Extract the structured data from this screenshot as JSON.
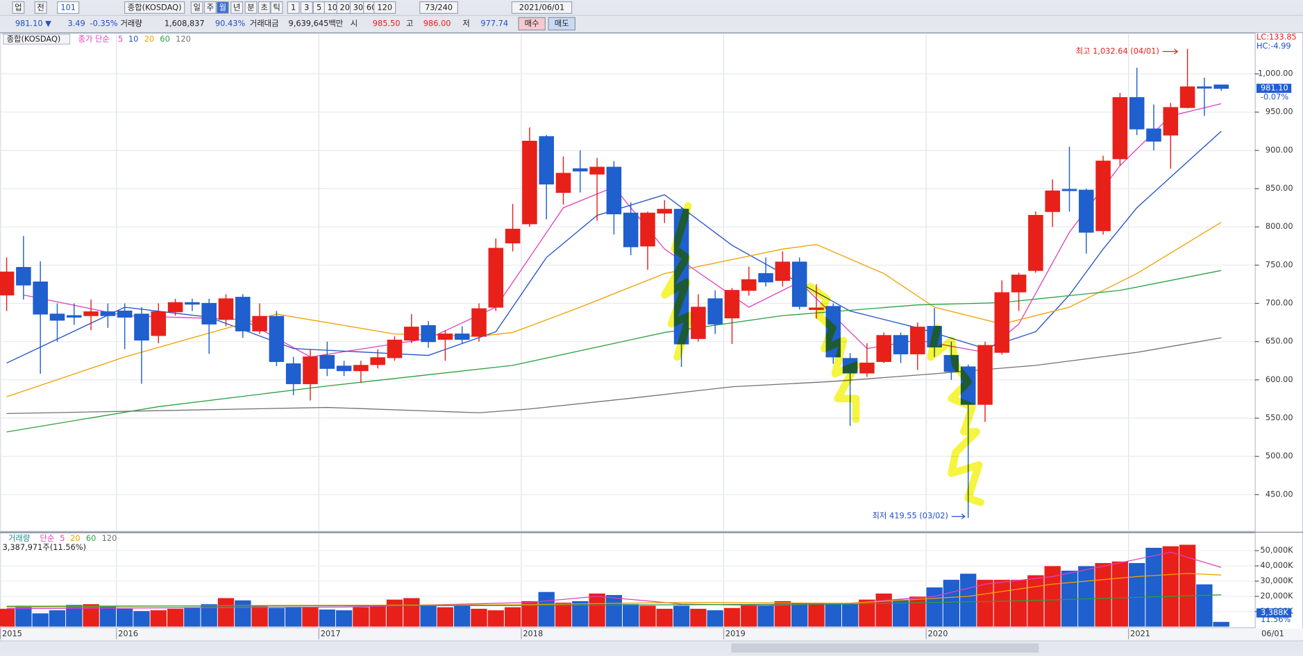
{
  "toolbar": {
    "row1": [
      "업",
      "전",
      "101",
      "종합(KOSDAQ)",
      "일",
      "주",
      "월",
      "년",
      "분",
      "초",
      "틱",
      "1",
      "3",
      "5",
      "10",
      "20",
      "30",
      "60",
      "120",
      "73/240",
      "2021/06/01"
    ],
    "row2": [
      "981.10 ▼",
      "3.49",
      "-0.35%",
      "거래량",
      "1,608,837",
      "90.43%",
      "거래대금",
      "9,639,645백만",
      "시",
      "985.50",
      "고",
      "986.00",
      "저",
      "977.74",
      "매수",
      "매도"
    ]
  },
  "chart_data": [
    {
      "type": "candlestick",
      "title": "종합(KOSDAQ)",
      "legend_title": "종가 단순",
      "up_color": "#e8201a",
      "down_color": "#1f5fce",
      "categories": [
        "2015",
        null,
        null,
        null,
        null,
        null,
        null,
        "2016",
        null,
        null,
        null,
        null,
        null,
        null,
        null,
        null,
        null,
        null,
        null,
        "2017",
        null,
        null,
        null,
        null,
        null,
        null,
        null,
        null,
        null,
        null,
        null,
        "2018",
        null,
        null,
        null,
        null,
        null,
        null,
        null,
        null,
        null,
        null,
        null,
        "2019",
        null,
        null,
        null,
        null,
        null,
        null,
        null,
        null,
        null,
        null,
        null,
        "2020",
        null,
        null,
        null,
        null,
        null,
        null,
        null,
        null,
        null,
        null,
        null,
        "2021",
        null,
        null,
        null,
        null,
        null
      ],
      "x_end_label": "06/01",
      "open": [
        711,
        747,
        728,
        686,
        684,
        684,
        689,
        690,
        686,
        658,
        689,
        701,
        700,
        679,
        708,
        664,
        683,
        621,
        595,
        632,
        618,
        612,
        620,
        629,
        652,
        671,
        653,
        660,
        657,
        695,
        779,
        804,
        918,
        845,
        876,
        869,
        878,
        818,
        775,
        818,
        823,
        654,
        706,
        681,
        717,
        739,
        730,
        754,
        692,
        696,
        628,
        609,
        624,
        658,
        634,
        670,
        632,
        617,
        568,
        636,
        715,
        743,
        820,
        849,
        848,
        795,
        889,
        969,
        928,
        920,
        956,
        983,
        985.5
      ],
      "high": [
        760,
        788,
        755,
        700,
        700,
        705,
        700,
        700,
        695,
        700,
        706,
        706,
        706,
        712,
        712,
        700,
        690,
        630,
        640,
        650,
        625,
        625,
        640,
        657,
        686,
        677,
        665,
        670,
        700,
        785,
        830,
        930,
        920,
        892,
        900,
        890,
        886,
        832,
        820,
        835,
        825,
        712,
        717,
        720,
        748,
        760,
        768,
        760,
        725,
        700,
        635,
        648,
        662,
        662,
        675,
        694,
        650,
        620,
        650,
        730,
        740,
        820,
        862,
        905,
        850,
        893,
        975,
        1008,
        960,
        962,
        1032.64,
        995,
        986
      ],
      "low": [
        690,
        705,
        608,
        650,
        672,
        665,
        668,
        640,
        595,
        648,
        684,
        690,
        634,
        670,
        655,
        660,
        618,
        580,
        573,
        605,
        605,
        596,
        615,
        625,
        648,
        642,
        625,
        648,
        650,
        690,
        768,
        800,
        810,
        829,
        845,
        808,
        790,
        763,
        744,
        805,
        617,
        650,
        660,
        647,
        710,
        722,
        722,
        692,
        680,
        621,
        540,
        604,
        622,
        622,
        613,
        630,
        600,
        419.55,
        545,
        633,
        690,
        740,
        800,
        820,
        765,
        790,
        880,
        920,
        900,
        876,
        955,
        945,
        977.74
      ],
      "close": [
        741,
        724,
        686,
        678,
        682,
        689,
        684,
        682,
        652,
        689,
        701,
        699,
        673,
        706,
        664,
        683,
        624,
        595,
        630,
        615,
        612,
        619,
        629,
        652,
        669,
        650,
        660,
        653,
        693,
        772,
        797,
        912,
        856,
        870,
        873,
        878,
        817,
        774,
        818,
        823,
        647,
        695,
        673,
        717,
        731,
        728,
        754,
        696,
        694,
        630,
        609,
        622,
        658,
        634,
        669,
        643,
        611,
        568,
        645,
        714,
        737,
        815,
        847,
        848,
        793,
        886,
        969,
        928,
        912,
        956,
        983,
        982,
        981.1
      ],
      "ylim": [
        402,
        1053
      ],
      "yticks": [
        {
          "value": 450,
          "label": "450.00"
        },
        {
          "value": 500,
          "label": "500.00"
        },
        {
          "value": 550,
          "label": "550.00"
        },
        {
          "value": 600,
          "label": "600.00"
        },
        {
          "value": 650,
          "label": "650.00"
        },
        {
          "value": 700,
          "label": "700.00"
        },
        {
          "value": 750,
          "label": "750.00"
        },
        {
          "value": 800,
          "label": "800.00"
        },
        {
          "value": 850,
          "label": "850.00"
        },
        {
          "value": 900,
          "label": "900.00"
        },
        {
          "value": 950,
          "label": "950.00"
        },
        {
          "value": 1000,
          "label": "1,000.00"
        }
      ],
      "grid": true,
      "ma": [
        {
          "name": "5",
          "color": "#e040c0",
          "x": [
            1,
            7,
            14,
            18,
            25,
            29,
            33,
            36,
            39,
            44,
            47,
            51,
            54,
            58,
            60,
            63,
            66,
            69,
            72
          ],
          "values": [
            711,
            684,
            679,
            630,
            654,
            695,
            825,
            852,
            771,
            695,
            728,
            641,
            652,
            636,
            673,
            793,
            880,
            945,
            961
          ]
        },
        {
          "name": "10",
          "color": "#1f4fc8",
          "x": [
            0,
            7,
            12,
            17,
            25,
            29,
            32,
            35,
            39,
            43,
            46,
            50,
            54,
            58,
            61,
            63,
            65,
            67,
            72
          ],
          "values": [
            622,
            695,
            682,
            641,
            632,
            663,
            760,
            815,
            842,
            776,
            739,
            690,
            668,
            641,
            663,
            711,
            771,
            825,
            925
          ]
        },
        {
          "name": "20",
          "color": "#f0a000",
          "x": [
            0,
            7,
            16,
            23,
            28,
            30,
            34,
            39,
            46,
            48,
            52,
            55,
            59,
            63,
            67,
            72
          ],
          "values": [
            578,
            630,
            686,
            660,
            657,
            662,
            695,
            739,
            771,
            777,
            739,
            695,
            673,
            695,
            739,
            806
          ]
        },
        {
          "name": "60",
          "color": "#2aa040",
          "x": [
            0,
            9,
            19,
            30,
            39,
            46,
            54,
            59,
            66,
            72
          ],
          "values": [
            532,
            565,
            592,
            619,
            662,
            684,
            698,
            701,
            717,
            743
          ]
        },
        {
          "name": "120",
          "color": "#707070",
          "x": [
            0,
            19,
            28,
            31,
            37,
            43,
            49,
            55,
            61,
            67,
            72
          ],
          "values": [
            556,
            564,
            557,
            562,
            576,
            591,
            598,
            608,
            619,
            636,
            655
          ]
        }
      ],
      "max_label": "최고 1,032.64 (04/01)",
      "min_label": "최저 419.55 (03/02)",
      "lc_label": "LC:133.85",
      "hc_label": "HC:-4.99",
      "last_label": "981.10",
      "last_change": "-0.07%"
    },
    {
      "type": "bar",
      "title": "거래량",
      "legend_title": "단순",
      "summary": "3,387,971주(11.56%)",
      "values": [
        12000,
        14000,
        9000,
        11000,
        14500,
        15000,
        13500,
        12000,
        10500,
        11000,
        12000,
        13000,
        15000,
        19000,
        17500,
        13500,
        12500,
        13000,
        13000,
        11500,
        11000,
        13000,
        14000,
        18000,
        19000,
        14000,
        13000,
        14000,
        12000,
        11000,
        13000,
        17000,
        23000,
        16000,
        17000,
        22000,
        21000,
        15000,
        14000,
        12000,
        14000,
        12000,
        11000,
        12500,
        15000,
        14000,
        17000,
        16000,
        16000,
        15000,
        15000,
        18000,
        22000,
        18000,
        20000,
        26000,
        31000,
        35000,
        31000,
        31000,
        31000,
        34000,
        40000,
        37000,
        40000,
        42000,
        43000,
        42000,
        52000,
        53000,
        54000,
        28000,
        3388
      ],
      "value_labels_last": "3,388K",
      "last_pct": "11.56%",
      "ylim": [
        0,
        61000
      ],
      "yticks": [
        {
          "value": 10000,
          "label": "10,000K"
        },
        {
          "value": 20000,
          "label": "20,000K"
        },
        {
          "value": 30000,
          "label": "30,000K"
        },
        {
          "value": 40000,
          "label": "40,000K"
        },
        {
          "value": 50000,
          "label": "50,000K"
        }
      ],
      "ma": [
        {
          "name": "5",
          "color": "#e040c0",
          "x": [
            0,
            10,
            20,
            31,
            35,
            40,
            45,
            50,
            55,
            58,
            62,
            66,
            69,
            72
          ],
          "values": [
            12000,
            12500,
            13000,
            16000,
            20000,
            15000,
            14000,
            15500,
            20000,
            28000,
            33000,
            42000,
            49000,
            39000
          ]
        },
        {
          "name": "20",
          "color": "#f0a000",
          "x": [
            0,
            15,
            30,
            40,
            50,
            57,
            62,
            67,
            70,
            72
          ],
          "values": [
            13000,
            14000,
            14500,
            16000,
            15500,
            20000,
            28000,
            33000,
            35000,
            34000
          ]
        },
        {
          "name": "60",
          "color": "#2aa040",
          "x": [
            0,
            30,
            50,
            60,
            72
          ],
          "values": [
            13500,
            14000,
            15000,
            17000,
            21000
          ]
        },
        {
          "name": "120",
          "color": "#707070",
          "x": [],
          "values": []
        }
      ]
    }
  ]
}
